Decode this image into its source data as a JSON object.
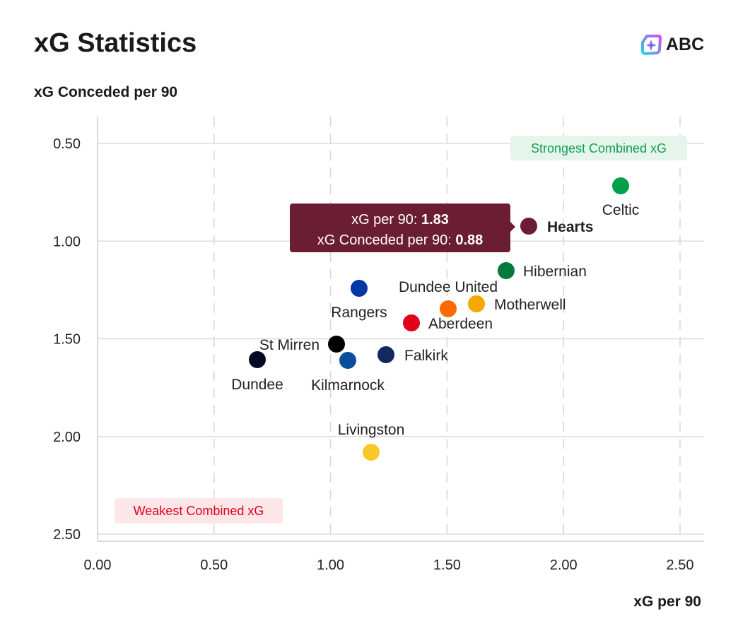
{
  "header": {
    "title": "xG Statistics",
    "logo_text": "ABC"
  },
  "chart_data": {
    "type": "scatter",
    "title": "xG Statistics",
    "xlabel": "xG per 90",
    "ylabel": "xG Conceded per 90",
    "xlim": [
      0,
      2.6
    ],
    "ylim": [
      0.37,
      2.55
    ],
    "y_inverted": true,
    "xticks": [
      "0.00",
      "0.50",
      "1.00",
      "1.50",
      "2.00",
      "2.50"
    ],
    "yticks": [
      "0.50",
      "1.00",
      "1.50",
      "2.00",
      "2.50"
    ],
    "grid": true,
    "points": [
      {
        "team": "Celtic",
        "x": 2.25,
        "y": 0.72,
        "color": "#00a04a"
      },
      {
        "team": "Hearts",
        "x": 1.83,
        "y": 0.88,
        "color": "#6b1d33"
      },
      {
        "team": "Hibernian",
        "x": 1.75,
        "y": 1.15,
        "color": "#007a3d"
      },
      {
        "team": "Rangers",
        "x": 1.12,
        "y": 1.24,
        "color": "#0037a6"
      },
      {
        "team": "Dundee United",
        "x": 1.51,
        "y": 1.35,
        "color": "#ff6a00"
      },
      {
        "team": "Motherwell",
        "x": 1.63,
        "y": 1.32,
        "color": "#f5a800"
      },
      {
        "team": "Aberdeen",
        "x": 1.35,
        "y": 1.42,
        "color": "#e2001a"
      },
      {
        "team": "St Mirren",
        "x": 1.03,
        "y": 1.53,
        "color": "#000000"
      },
      {
        "team": "Falkirk",
        "x": 1.24,
        "y": 1.58,
        "color": "#11295f"
      },
      {
        "team": "Kilmarnock",
        "x": 1.07,
        "y": 1.61,
        "color": "#0b4f9c"
      },
      {
        "team": "Dundee",
        "x": 0.69,
        "y": 1.61,
        "color": "#050a24"
      },
      {
        "team": "Livingston",
        "x": 1.17,
        "y": 2.08,
        "color": "#f8c82a"
      }
    ],
    "annotations": {
      "top_right": "Strongest Combined xG",
      "bottom_left": "Weakest Combined xG"
    },
    "tooltip": {
      "team": "Hearts",
      "line1_label": "xG per 90: ",
      "line1_value": "1.83",
      "line2_label": "xG Conceded per 90: ",
      "line2_value": "0.88"
    }
  }
}
